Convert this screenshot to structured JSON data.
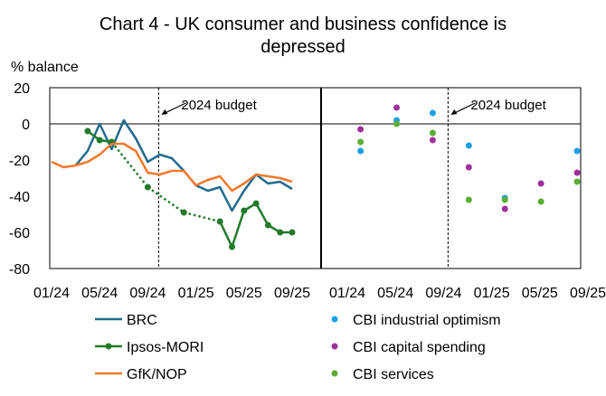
{
  "chart_data": {
    "type": "line",
    "title_line1": "Chart 4 - UK consumer and business confidence is",
    "title_line2": "depressed",
    "ylabel": "% balance",
    "ylim": [
      -80,
      20
    ],
    "yticks": [
      "20",
      "0",
      "-20",
      "-40",
      "-60",
      "-80"
    ],
    "ytick_values": [
      20,
      0,
      -20,
      -40,
      -60,
      -80
    ],
    "xtick_labels": [
      "01/24",
      "05/24",
      "09/24",
      "01/25",
      "05/25",
      "09/25"
    ],
    "xtick_months": [
      0,
      4,
      8,
      12,
      16,
      20
    ],
    "annotation": "2024 budget",
    "budget_month": 8.9,
    "left_panel": [
      {
        "name": "BRC",
        "color": "#236B8E",
        "style": "line",
        "x": [
          2,
          3,
          4,
          5,
          6,
          7,
          8,
          9,
          10,
          11,
          12,
          13,
          14,
          15,
          16,
          17,
          18,
          19,
          20
        ],
        "values": [
          -23,
          -15,
          0,
          -14,
          2,
          -8,
          -21,
          -17,
          -19,
          -26,
          -34,
          -37,
          -35,
          -48,
          -37,
          -28,
          -33,
          -32,
          -36
        ]
      },
      {
        "name": "Ipsos-MORI",
        "color": "#237A2B",
        "style": "line-markers",
        "x": [
          3,
          4,
          5,
          8,
          11,
          14,
          15,
          16,
          17,
          18,
          19,
          20
        ],
        "values": [
          -4,
          -9,
          -10,
          -35,
          -49,
          -54,
          -68,
          -48,
          -44,
          -56,
          -60,
          -60
        ],
        "dotted_between_months": [
          5,
          14
        ]
      },
      {
        "name": "GfK/NOP",
        "color": "#F4792B",
        "style": "line",
        "x": [
          0,
          1,
          2,
          3,
          4,
          5,
          6,
          7,
          8,
          9,
          10,
          11,
          12,
          13,
          14,
          15,
          16,
          17,
          18,
          19,
          20
        ],
        "values": [
          -21,
          -24,
          -23,
          -21,
          -17,
          -11,
          -11,
          -15,
          -27,
          -28,
          -26,
          -26,
          -34,
          -31,
          -29,
          -37,
          -33,
          -28,
          -29,
          -30,
          -32
        ]
      }
    ],
    "right_panel": [
      {
        "name": "CBI industrial optimism",
        "color": "#1BA1E2",
        "style": "scatter",
        "x": [
          1.4,
          4.4,
          7.4,
          10.4,
          13.4,
          19.4
        ],
        "values": [
          -15,
          2,
          6,
          -12,
          -41,
          -15
        ]
      },
      {
        "name": "CBI capital spending",
        "color": "#A0309E",
        "style": "scatter",
        "x": [
          1.4,
          4.4,
          7.4,
          10.4,
          13.4,
          16.4,
          19.4
        ],
        "values": [
          -3,
          9,
          -9,
          -24,
          -47,
          -33,
          -27
        ]
      },
      {
        "name": "CBI services",
        "color": "#5AAE32",
        "style": "scatter",
        "x": [
          1.4,
          4.4,
          7.4,
          10.4,
          13.4,
          16.4,
          19.4
        ],
        "values": [
          -10,
          0,
          -5,
          -42,
          -42,
          -43,
          -32
        ]
      }
    ]
  }
}
